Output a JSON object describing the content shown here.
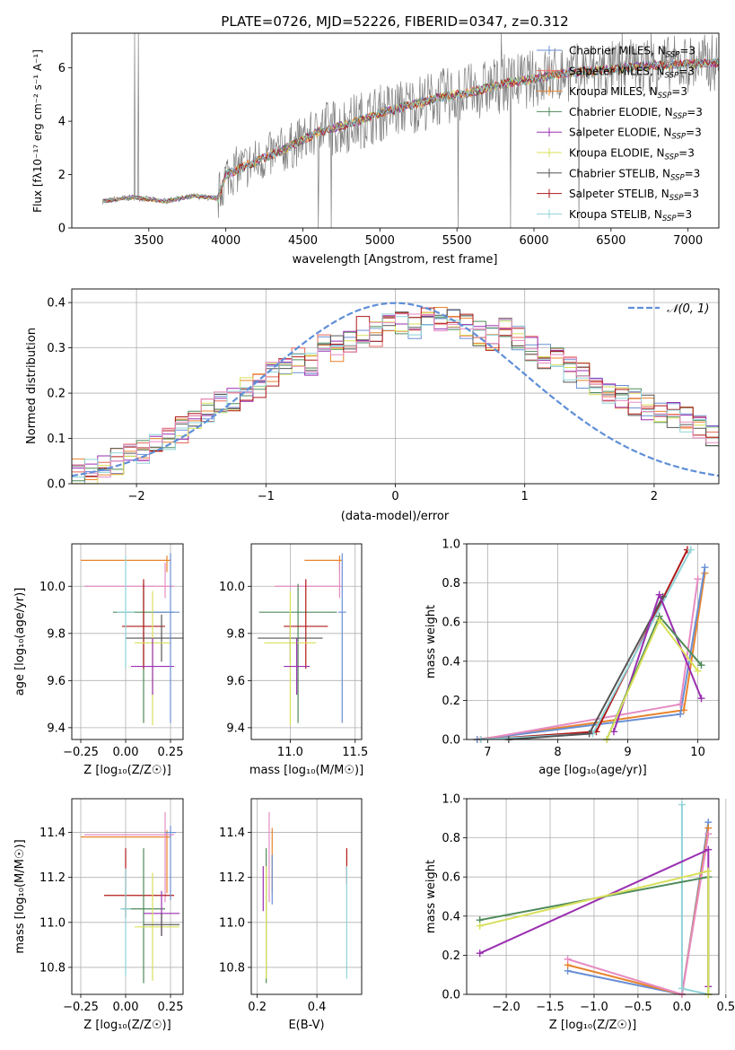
{
  "figure_title": "PLATE=0726, MJD=52226, FIBERID=0347, z=0.312",
  "colors": {
    "Chabrier MILES": "#6a8fd4",
    "Salpeter MILES": "#e8685a",
    "Kroupa MILES": "#e8842c",
    "Chabrier ELODIE": "#4f8a5a",
    "Salpeter ELODIE": "#9a2fb0",
    "Kroupa ELODIE": "#d8e05a",
    "Chabrier STELIB": "#555555",
    "Salpeter STELIB": "#b01818",
    "Kroupa STELIB": "#8fd3d8",
    "pink": "#e68bc2",
    "data": "#808080",
    "normal": "#5f8fd8"
  },
  "chart_data": [
    {
      "id": "spectrum",
      "type": "line",
      "xlabel": "wavelength [Angstrom, rest frame]",
      "ylabel": "Flux [fλ10⁻¹⁷ erg cm⁻² s⁻¹ A⁻¹]",
      "xlim": [
        3000,
        7200
      ],
      "ylim": [
        0,
        7.3
      ],
      "xticks": [
        3500,
        4000,
        4500,
        5000,
        5500,
        6000,
        6500,
        7000
      ],
      "yticks": [
        0,
        2,
        4,
        6
      ],
      "legend_loc": "upper right",
      "legend": [
        "Chabrier MILES, N_SSP=3",
        "Salpeter MILES, N_SSP=3",
        "Kroupa MILES, N_SSP=3",
        "Chabrier ELODIE, N_SSP=3",
        "Salpeter ELODIE, N_SSP=3",
        "Kroupa ELODIE, N_SSP=3",
        "Chabrier STELIB, N_SSP=3",
        "Salpeter STELIB, N_SSP=3",
        "Kroupa STELIB, N_SSP=3"
      ],
      "continuum_x": [
        3200,
        3400,
        3600,
        3800,
        3950,
        4000,
        4200,
        4400,
        4600,
        4800,
        5000,
        5200,
        5400,
        5600,
        5800,
        6000,
        6200,
        6400,
        6600,
        6800,
        7000,
        7200
      ],
      "continuum_y": [
        1.0,
        1.15,
        1.0,
        1.2,
        1.1,
        2.0,
        2.5,
        3.0,
        3.6,
        3.9,
        4.3,
        4.6,
        4.9,
        5.1,
        5.4,
        5.6,
        5.8,
        5.9,
        6.0,
        6.1,
        6.15,
        6.2
      ]
    },
    {
      "id": "residuals",
      "type": "histogram",
      "xlabel": "(data-model)/error",
      "ylabel": "Normed distribution",
      "xlim": [
        -2.5,
        2.5
      ],
      "ylim": [
        0,
        0.43
      ],
      "xticks": [
        -2,
        -1,
        0,
        1,
        2
      ],
      "yticks": [
        0.0,
        0.1,
        0.2,
        0.3,
        0.4
      ],
      "legend": [
        "N(0, 1)"
      ],
      "legend_loc": "upper right",
      "bin_edges_start": -2.5,
      "bin_width": 0.1,
      "reference_hist": [
        0.03,
        0.03,
        0.04,
        0.05,
        0.06,
        0.07,
        0.08,
        0.1,
        0.12,
        0.14,
        0.16,
        0.18,
        0.19,
        0.21,
        0.22,
        0.24,
        0.25,
        0.27,
        0.26,
        0.31,
        0.3,
        0.32,
        0.34,
        0.33,
        0.35,
        0.36,
        0.35,
        0.37,
        0.36,
        0.37,
        0.35,
        0.33,
        0.32,
        0.34,
        0.32,
        0.3,
        0.28,
        0.27,
        0.25,
        0.24,
        0.22,
        0.2,
        0.19,
        0.18,
        0.17,
        0.16,
        0.15,
        0.14,
        0.12,
        0.11
      ]
    },
    {
      "id": "age_vs_Z",
      "type": "errorbar",
      "xlabel": "Z [log₁₀(Z/Z☉)]",
      "ylabel": "age  [log₁₀(age/yr)]",
      "xlim": [
        -0.3,
        0.32
      ],
      "ylim": [
        9.35,
        10.18
      ],
      "xticks": [
        -0.25,
        0.0,
        0.25
      ],
      "yticks": [
        9.4,
        9.6,
        9.8,
        10.0
      ],
      "points": [
        {
          "model": "Kroupa MILES",
          "x": 0.23,
          "y": 10.11,
          "xerr": [
            0.48,
            0.02
          ],
          "yerr": [
            0.05,
            0.02
          ]
        },
        {
          "model": "pink",
          "x": 0.22,
          "y": 10.0,
          "xerr": [
            0.45,
            0.05
          ],
          "yerr": [
            0.05,
            0.1
          ]
        },
        {
          "model": "Chabrier ELODIE",
          "x": 0.1,
          "y": 9.89,
          "xerr": [
            0.17,
            0.17
          ],
          "yerr": [
            0.47,
            0.12
          ]
        },
        {
          "model": "Salpeter STELIB",
          "x": 0.1,
          "y": 9.83,
          "xerr": [
            0.12,
            0.12
          ],
          "yerr": [
            0.18,
            0.2
          ]
        },
        {
          "model": "Chabrier STELIB",
          "x": 0.2,
          "y": 9.78,
          "xerr": [
            0.2,
            0.2
          ],
          "yerr": [
            0.1,
            0.1
          ]
        },
        {
          "model": "Kroupa ELODIE",
          "x": 0.15,
          "y": 9.76,
          "xerr": [
            0.1,
            0.1
          ],
          "yerr": [
            0.35,
            0.22
          ]
        },
        {
          "model": "Salpeter ELODIE",
          "x": 0.15,
          "y": 9.66,
          "xerr": [
            0.12,
            0.12
          ],
          "yerr": [
            0.12,
            0.12
          ]
        },
        {
          "model": "Chabrier MILES",
          "x": 0.25,
          "y": 9.89,
          "xerr": [
            0.1,
            0.05
          ],
          "yerr": [
            0.47,
            0.25
          ]
        },
        {
          "model": "Kroupa STELIB",
          "x": 0.0,
          "y": 9.89,
          "xerr": [
            0.05,
            0.05
          ],
          "yerr": [
            0.24,
            0.24
          ]
        }
      ]
    },
    {
      "id": "age_vs_mass",
      "type": "errorbar",
      "xlabel": "mass [log₁₀(M/M☉)]",
      "ylabel": "",
      "xlim": [
        10.7,
        11.55
      ],
      "ylim": [
        9.35,
        10.18
      ],
      "xticks": [
        11.0,
        11.5
      ],
      "yticks": [
        9.4,
        9.6,
        9.8,
        10.0
      ],
      "points": [
        {
          "model": "Kroupa MILES",
          "x": 11.38,
          "y": 10.11,
          "xerr": [
            0.27,
            0.02
          ],
          "yerr": [
            0.05,
            0.02
          ]
        },
        {
          "model": "pink",
          "x": 11.38,
          "y": 10.0,
          "xerr": [
            0.5,
            0.02
          ],
          "yerr": [
            0.05,
            0.1
          ]
        },
        {
          "model": "Chabrier ELODIE",
          "x": 11.06,
          "y": 9.89,
          "xerr": [
            0.3,
            0.3
          ],
          "yerr": [
            0.47,
            0.12
          ]
        },
        {
          "model": "Salpeter STELIB",
          "x": 11.12,
          "y": 9.83,
          "xerr": [
            0.17,
            0.17
          ],
          "yerr": [
            0.18,
            0.2
          ]
        },
        {
          "model": "Chabrier STELIB",
          "x": 11.0,
          "y": 9.78,
          "xerr": [
            0.25,
            0.25
          ],
          "yerr": [
            0.1,
            0.1
          ]
        },
        {
          "model": "Kroupa ELODIE",
          "x": 11.0,
          "y": 9.76,
          "xerr": [
            0.2,
            0.2
          ],
          "yerr": [
            0.35,
            0.22
          ]
        },
        {
          "model": "Salpeter ELODIE",
          "x": 11.05,
          "y": 9.66,
          "xerr": [
            0.1,
            0.1
          ],
          "yerr": [
            0.12,
            0.12
          ]
        },
        {
          "model": "Chabrier MILES",
          "x": 11.4,
          "y": 9.89,
          "xerr": [
            0.03,
            0.03
          ],
          "yerr": [
            0.47,
            0.25
          ]
        }
      ]
    },
    {
      "id": "weight_vs_age",
      "type": "line",
      "xlabel": "age  [log₁₀(age/yr)]",
      "ylabel": "mass weight",
      "xlim": [
        6.7,
        10.3
      ],
      "ylim": [
        0,
        1.0
      ],
      "xticks": [
        7,
        8,
        9,
        10
      ],
      "yticks": [
        0.0,
        0.2,
        0.4,
        0.6,
        0.8,
        1.0
      ],
      "series": [
        {
          "model": "Kroupa MILES",
          "x": [
            6.85,
            9.8,
            10.1
          ],
          "y": [
            0.0,
            0.15,
            0.85
          ]
        },
        {
          "model": "Chabrier MILES",
          "x": [
            6.85,
            9.75,
            10.1
          ],
          "y": [
            0.0,
            0.13,
            0.88
          ]
        },
        {
          "model": "pink",
          "x": [
            6.9,
            9.75,
            10.0
          ],
          "y": [
            0.0,
            0.18,
            0.82
          ]
        },
        {
          "model": "Salpeter STELIB",
          "x": [
            6.9,
            8.55,
            9.85
          ],
          "y": [
            0.0,
            0.04,
            0.97
          ]
        },
        {
          "model": "Kroupa STELIB",
          "x": [
            6.9,
            8.5,
            9.9
          ],
          "y": [
            0.0,
            0.03,
            0.97
          ]
        },
        {
          "model": "Chabrier STELIB",
          "x": [
            7.3,
            8.45,
            9.5
          ],
          "y": [
            0.0,
            0.03,
            0.73
          ]
        },
        {
          "model": "Salpeter ELODIE",
          "x": [
            8.8,
            9.45,
            10.05
          ],
          "y": [
            0.04,
            0.74,
            0.21
          ]
        },
        {
          "model": "Chabrier ELODIE",
          "x": [
            8.7,
            9.45,
            10.05
          ],
          "y": [
            0.0,
            0.63,
            0.38
          ]
        },
        {
          "model": "Kroupa ELODIE",
          "x": [
            8.7,
            9.45,
            10.0
          ],
          "y": [
            0.0,
            0.61,
            0.35
          ]
        }
      ]
    },
    {
      "id": "mass_vs_Z",
      "type": "errorbar",
      "xlabel": "Z [log₁₀(Z/Z☉)]",
      "ylabel": "mass [log₁₀(M/M☉)]",
      "xlim": [
        -0.3,
        0.32
      ],
      "ylim": [
        10.68,
        11.55
      ],
      "xticks": [
        -0.25,
        0.0,
        0.25
      ],
      "yticks": [
        10.8,
        11.0,
        11.2,
        11.4
      ],
      "points": [
        {
          "model": "Kroupa MILES",
          "x": 0.23,
          "y": 11.38,
          "xerr": [
            0.48,
            0.02
          ],
          "yerr": [
            0.25,
            0.03
          ]
        },
        {
          "model": "pink",
          "x": 0.22,
          "y": 11.39,
          "xerr": [
            0.45,
            0.05
          ],
          "yerr": [
            0.3,
            0.1
          ]
        },
        {
          "model": "Salpeter STELIB",
          "x": 0.0,
          "y": 11.12,
          "xerr": [
            0.12,
            0.27
          ],
          "yerr": [
            0.1,
            0.21
          ]
        },
        {
          "model": "Chabrier ELODIE",
          "x": 0.1,
          "y": 11.06,
          "xerr": [
            0.12,
            0.12
          ],
          "yerr": [
            0.33,
            0.27
          ]
        },
        {
          "model": "Salpeter ELODIE",
          "x": 0.2,
          "y": 11.04,
          "xerr": [
            0.1,
            0.1
          ],
          "yerr": [
            0.1,
            0.1
          ]
        },
        {
          "model": "Kroupa ELODIE",
          "x": 0.15,
          "y": 10.98,
          "xerr": [
            0.1,
            0.15
          ],
          "yerr": [
            0.24,
            0.24
          ]
        },
        {
          "model": "Chabrier STELIB",
          "x": 0.2,
          "y": 10.99,
          "xerr": [
            0.1,
            0.1
          ],
          "yerr": [
            0.05,
            0.05
          ]
        },
        {
          "model": "Chabrier MILES",
          "x": 0.25,
          "y": 11.4,
          "xerr": [
            0.03,
            0.03
          ],
          "yerr": [
            0.3,
            0.03
          ]
        },
        {
          "model": "Kroupa STELIB",
          "x": 0.0,
          "y": 11.06,
          "xerr": [
            0.03,
            0.03
          ],
          "yerr": [
            0.3,
            0.18
          ]
        }
      ]
    },
    {
      "id": "mass_vs_ebv",
      "type": "errorbar",
      "xlabel": "E(B-V)",
      "ylabel": "",
      "xlim": [
        0.18,
        0.55
      ],
      "ylim": [
        10.68,
        11.55
      ],
      "xticks": [
        0.2,
        0.4
      ],
      "yticks": [
        10.8,
        11.0,
        11.2,
        11.4
      ],
      "points": [
        {
          "model": "pink",
          "x": 0.24,
          "y": 11.39,
          "xerr": [
            0,
            0
          ],
          "yerr": [
            0.3,
            0.1
          ]
        },
        {
          "model": "Kroupa MILES",
          "x": 0.25,
          "y": 11.3,
          "xerr": [
            0,
            0
          ],
          "yerr": [
            0.17,
            0.12
          ]
        },
        {
          "model": "Chabrier MILES",
          "x": 0.25,
          "y": 11.2,
          "xerr": [
            0,
            0
          ],
          "yerr": [
            0.12,
            0.1
          ]
        },
        {
          "model": "Chabrier ELODIE",
          "x": 0.23,
          "y": 11.06,
          "xerr": [
            0,
            0
          ],
          "yerr": [
            0.33,
            0.27
          ]
        },
        {
          "model": "Salpeter ELODIE",
          "x": 0.22,
          "y": 11.15,
          "xerr": [
            0,
            0
          ],
          "yerr": [
            0.1,
            0.1
          ]
        },
        {
          "model": "Kroupa ELODIE",
          "x": 0.23,
          "y": 10.95,
          "xerr": [
            0,
            0
          ],
          "yerr": [
            0.2,
            0.3
          ]
        },
        {
          "model": "Salpeter STELIB",
          "x": 0.5,
          "y": 11.25,
          "xerr": [
            0,
            0
          ],
          "yerr": [
            0.08,
            0.08
          ]
        },
        {
          "model": "Kroupa STELIB",
          "x": 0.5,
          "y": 11.0,
          "xerr": [
            0,
            0
          ],
          "yerr": [
            0.25,
            0.25
          ]
        }
      ]
    },
    {
      "id": "weight_vs_Z",
      "type": "line",
      "xlabel": "Z [log₁₀(Z/Z☉)]",
      "ylabel": "mass weight",
      "xlim": [
        -2.45,
        0.42
      ],
      "ylim": [
        0,
        1.0
      ],
      "xticks": [
        -2.0,
        -1.5,
        -1.0,
        -0.5,
        0.0,
        0.5
      ],
      "yticks": [
        0.0,
        0.2,
        0.4,
        0.6,
        0.8,
        1.0
      ],
      "series": [
        {
          "model": "Chabrier MILES",
          "x": [
            -1.3,
            0.0,
            0.3
          ],
          "y": [
            0.12,
            0.0,
            0.88
          ]
        },
        {
          "model": "Kroupa MILES",
          "x": [
            -1.3,
            0.0,
            0.3
          ],
          "y": [
            0.15,
            0.0,
            0.85
          ]
        },
        {
          "model": "pink",
          "x": [
            -1.3,
            0.0,
            0.3
          ],
          "y": [
            0.18,
            0.0,
            0.82
          ]
        },
        {
          "model": "Kroupa STELIB",
          "x": [
            0.0,
            0.0,
            0.3
          ],
          "y": [
            0.97,
            0.03,
            0.0
          ]
        },
        {
          "model": "Salpeter ELODIE",
          "x": [
            -2.3,
            0.3,
            0.3
          ],
          "y": [
            0.21,
            0.74,
            0.04
          ]
        },
        {
          "model": "Chabrier ELODIE",
          "x": [
            -2.3,
            0.3,
            0.3
          ],
          "y": [
            0.38,
            0.6,
            0.0
          ]
        },
        {
          "model": "Kroupa ELODIE",
          "x": [
            -2.3,
            0.3,
            0.3
          ],
          "y": [
            0.35,
            0.63,
            0.0
          ]
        }
      ]
    }
  ]
}
